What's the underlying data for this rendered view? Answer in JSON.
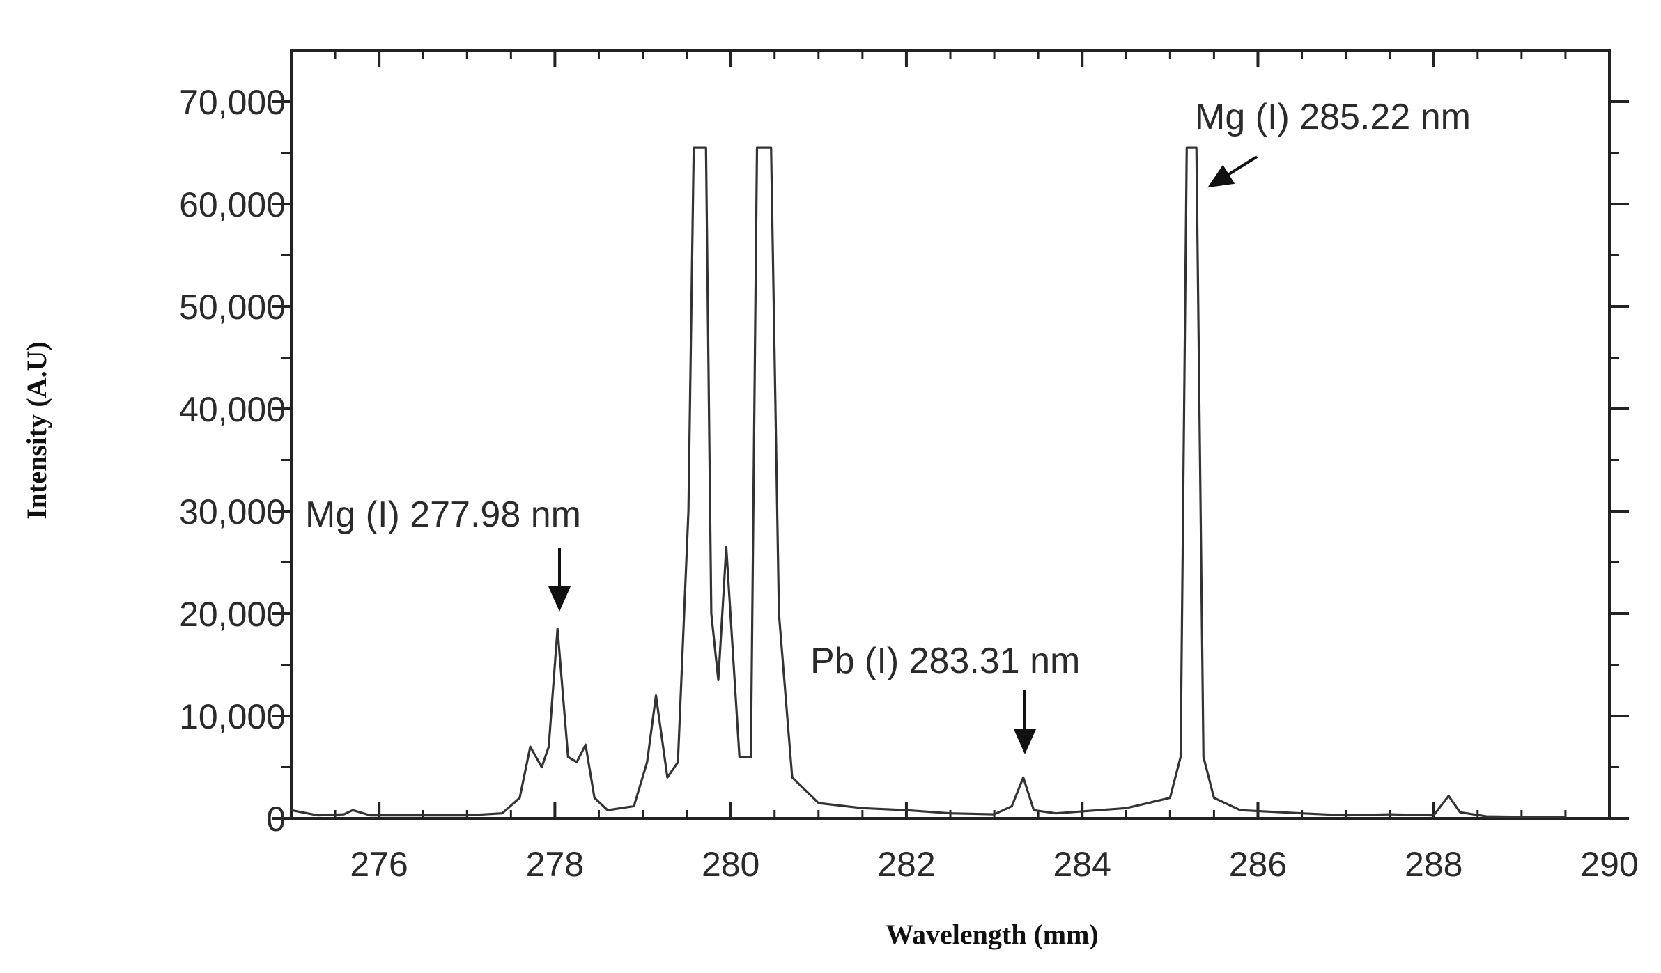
{
  "chart_data": {
    "type": "line",
    "title": "",
    "xlabel": "Wavelength (mm)",
    "ylabel": "Intensity (A.U)",
    "xlim": [
      275,
      290
    ],
    "ylim": [
      0,
      70000
    ],
    "x_ticks": [
      276,
      278,
      280,
      282,
      284,
      286,
      288,
      290
    ],
    "x_tick_labels": [
      "276",
      "278",
      "280",
      "282",
      "284",
      "286",
      "288",
      "290"
    ],
    "y_ticks": [
      0,
      10000,
      20000,
      30000,
      40000,
      50000,
      60000,
      70000
    ],
    "y_tick_labels": [
      "0",
      "10,000",
      "20,000",
      "30,000",
      "40,000",
      "50,000",
      "60,000",
      "70,000"
    ],
    "grid": false,
    "series": [
      {
        "x": [
          275.0,
          275.3,
          275.6,
          275.7,
          275.9,
          276.5,
          277.0,
          277.4,
          277.6,
          277.72,
          277.85,
          277.93,
          278.03,
          278.15,
          278.25,
          278.35,
          278.45,
          278.6,
          278.9,
          279.05,
          279.15,
          279.28,
          279.4,
          279.52,
          279.58,
          279.72,
          279.78,
          279.86,
          279.95,
          280.1,
          280.23,
          280.3,
          280.46,
          280.55,
          280.7,
          281.0,
          281.5,
          282.0,
          282.5,
          283.0,
          283.2,
          283.33,
          283.45,
          283.7,
          284.5,
          285.0,
          285.12,
          285.19,
          285.3,
          285.38,
          285.5,
          285.8,
          286.5,
          287.0,
          287.5,
          288.0,
          288.17,
          288.3,
          288.6,
          289.5
        ],
        "y": [
          800,
          300,
          400,
          800,
          300,
          300,
          300,
          500,
          2000,
          7000,
          5000,
          7000,
          18500,
          6000,
          5500,
          7200,
          2000,
          800,
          1200,
          5500,
          12000,
          4000,
          5500,
          30000,
          65500,
          65500,
          20000,
          13500,
          26500,
          6000,
          6000,
          65500,
          65500,
          20000,
          4000,
          1500,
          1000,
          800,
          500,
          400,
          1200,
          4000,
          800,
          500,
          1000,
          2000,
          6000,
          65500,
          65500,
          6000,
          2000,
          800,
          500,
          300,
          400,
          300,
          2200,
          600,
          200,
          100
        ]
      }
    ],
    "annotations": [
      {
        "text": "Mg (I) 277.98 nm",
        "x": 277.98,
        "y": 18500
      },
      {
        "text": "Pb (I) 283.31 nm",
        "x": 283.31,
        "y": 4000
      },
      {
        "text": "Mg (I) 285.22 nm",
        "x": 285.22,
        "y": 65500
      }
    ]
  }
}
